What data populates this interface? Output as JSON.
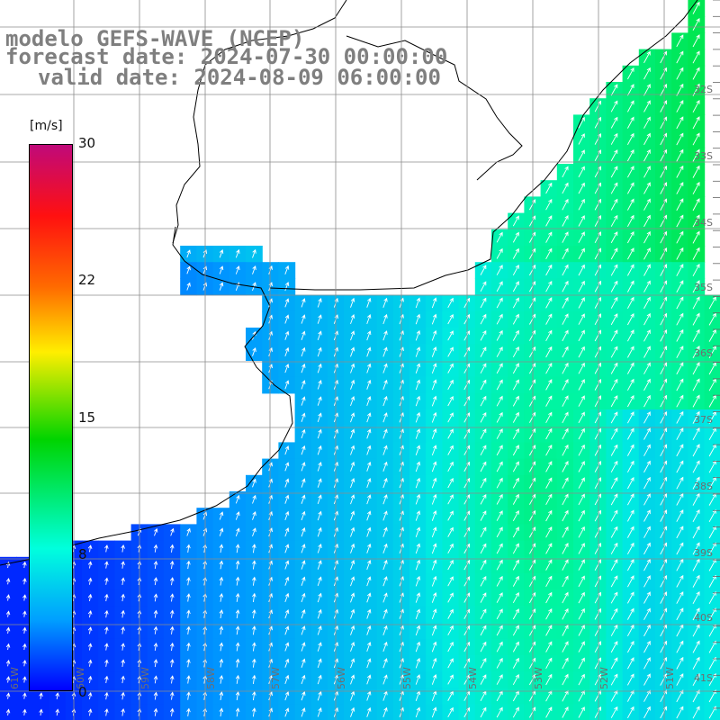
{
  "title": {
    "line1": "modelo GEFS-WAVE (NCEP)",
    "line2": "forecast date: 2024-07-30 00:00:00",
    "line3": "valid date: 2024-08-09 06:00:00"
  },
  "colorbar": {
    "unit": "[m/s]",
    "ticks": [
      "30",
      "22",
      "15",
      "8",
      "0"
    ],
    "range": [
      0,
      30
    ],
    "colors": [
      "#0000ff",
      "#00a0ff",
      "#00ffdd",
      "#00d400",
      "#ffee00",
      "#ff6a00",
      "#ff1010",
      "#c0097a"
    ]
  },
  "map": {
    "lat_labels": [
      "32S",
      "33S",
      "34S",
      "35S",
      "36S",
      "37S",
      "38S",
      "39S",
      "40S",
      "41S"
    ],
    "lon_labels": [
      "61W",
      "60W",
      "59W",
      "58W",
      "57W",
      "56W",
      "55W",
      "54W",
      "53W",
      "52W",
      "51W"
    ],
    "land_color": "#ffffff",
    "grid_color": "#8c8c8c",
    "arrow_color": "#ffffff",
    "vector_direction": "predominantly toward north / north-east"
  }
}
